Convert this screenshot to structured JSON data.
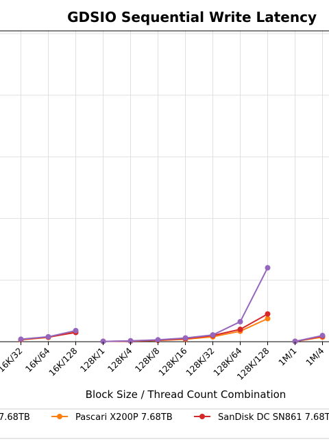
{
  "chart_data": {
    "type": "line",
    "title": "GDSIO Sequential Write Latency",
    "xlabel": "Block Size / Thread Count Combination",
    "ylabel": "",
    "ylim": [
      0,
      100
    ],
    "grid": true,
    "legend_position": "bottom",
    "x_tick_labels": [
      "16K/32",
      "16K/64",
      "16K/128",
      "128K/1",
      "128K/4",
      "128K/8",
      "128K/16",
      "128K/32",
      "128K/64",
      "128K/128",
      "1M/1",
      "1M/4"
    ],
    "segments": [
      [
        "16K/32",
        "16K/64",
        "16K/128"
      ],
      [
        "128K/1",
        "128K/4",
        "128K/8",
        "128K/16",
        "128K/32",
        "128K/64",
        "128K/128"
      ],
      [
        "1M/1",
        "1M/4"
      ]
    ],
    "series": [
      {
        "name": "Pascari X200P 7.68TB",
        "color": "#ff7f0e",
        "values": [
          0.6,
          1.4,
          3.2,
          0.1,
          0.2,
          0.4,
          0.8,
          1.6,
          3.4,
          7.5,
          0.1,
          1.5
        ]
      },
      {
        "name": "SanDisk DC SN861 7.68TB",
        "color": "#d62728",
        "values": [
          0.7,
          1.5,
          3.0,
          0.1,
          0.2,
          0.5,
          1.0,
          2.0,
          4.0,
          9.0,
          0.1,
          1.8
        ]
      },
      {
        "name": "",
        "color": "#9467bd",
        "values": [
          0.8,
          1.6,
          3.6,
          0.1,
          0.3,
          0.6,
          1.2,
          2.2,
          6.5,
          24.0,
          0.1,
          2.0
        ]
      }
    ],
    "legend_entries": [
      {
        "label": "7.68TB",
        "color": ""
      },
      {
        "label": "Pascari X200P 7.68TB",
        "color": "#ff7f0e"
      },
      {
        "label": "SanDisk DC SN861 7.68TB",
        "color": "#d62728"
      }
    ]
  }
}
